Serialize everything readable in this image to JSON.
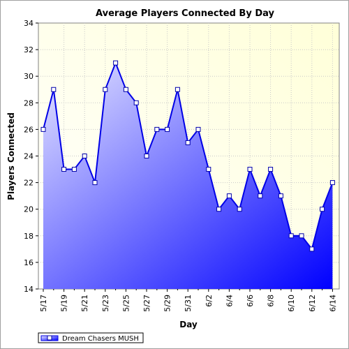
{
  "chart_data": {
    "type": "area",
    "title": "Average Players Connected By Day",
    "xlabel": "Day",
    "ylabel": "Players Connected",
    "ylim": [
      14,
      34
    ],
    "yticks": [
      14,
      16,
      18,
      20,
      22,
      24,
      26,
      28,
      30,
      32,
      34
    ],
    "x": [
      "5/17",
      "5/18",
      "5/19",
      "5/20",
      "5/21",
      "5/22",
      "5/23",
      "5/24",
      "5/25",
      "5/26",
      "5/27",
      "5/28",
      "5/29",
      "5/30",
      "5/31",
      "6/1",
      "6/2",
      "6/3",
      "6/4",
      "6/5",
      "6/6",
      "6/7",
      "6/8",
      "6/9",
      "6/10",
      "6/11",
      "6/12",
      "6/13",
      "6/14"
    ],
    "xtick_labels": [
      "5/17",
      "5/19",
      "5/21",
      "5/23",
      "5/25",
      "5/27",
      "5/29",
      "5/31",
      "6/2",
      "6/4",
      "6/6",
      "6/8",
      "6/10",
      "6/12",
      "6/14"
    ],
    "series": [
      {
        "name": "Dream Chasers MUSH",
        "values": [
          26,
          29,
          23,
          23,
          24,
          22,
          29,
          31,
          29,
          28,
          24,
          26,
          26,
          29,
          25,
          26,
          23,
          20,
          21,
          20,
          23,
          21,
          23,
          21,
          18,
          18,
          17,
          20,
          22
        ]
      }
    ],
    "grid": true,
    "legend_position": "bottom-left",
    "colors": {
      "line": "#0000e6",
      "fill_light": "#dcdcff",
      "fill_dark": "#0000ff",
      "plot_bg_light": "#ffffe0",
      "plot_bg_white": "#ffffff",
      "grid": "#c8c8c8",
      "marker_fill": "#ffffff"
    }
  }
}
